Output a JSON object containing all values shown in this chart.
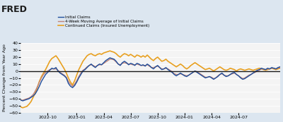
{
  "title": "",
  "ylabel": "Percent Change from Year Ago",
  "background_color": "#dce6f0",
  "plot_bg_color": "#f4f4f4",
  "ylim": [
    -60,
    40
  ],
  "yticks": [
    -60,
    -50,
    -40,
    -30,
    -20,
    -10,
    0,
    10,
    20,
    30,
    40
  ],
  "legend_entries": [
    {
      "label": "Initial Claims",
      "color": "#1f4e9c",
      "lw": 1.0
    },
    {
      "label": "4-Week Moving Average of Initial Claims",
      "color": "#c0857a",
      "lw": 1.0
    },
    {
      "label": "Continued Claims (Insured Unemployment)",
      "color": "#e8a020",
      "lw": 1.2
    }
  ],
  "fred_logo_text": "FRED",
  "series": {
    "initial_claims": {
      "x": [
        0,
        1,
        2,
        3,
        4,
        5,
        6,
        7,
        8,
        9,
        10,
        11,
        12,
        13,
        14,
        15,
        16,
        17,
        18,
        19,
        20,
        21,
        22,
        23,
        24,
        25,
        26,
        27,
        28,
        29,
        30,
        31,
        32,
        33,
        34,
        35,
        36,
        37,
        38,
        39,
        40,
        41,
        42,
        43,
        44,
        45,
        46,
        47,
        48,
        49,
        50,
        51,
        52,
        53,
        54,
        55,
        56,
        57,
        58,
        59,
        60,
        61,
        62,
        63,
        64,
        65,
        66,
        67,
        68,
        69,
        70,
        71,
        72,
        73,
        74,
        75,
        76,
        77,
        78,
        79,
        80,
        81,
        82,
        83,
        84,
        85,
        86,
        87,
        88,
        89,
        90,
        91,
        92,
        93,
        94,
        95,
        96,
        97,
        98,
        99,
        100,
        101,
        102,
        103,
        104,
        105,
        106,
        107,
        108,
        109,
        110,
        111,
        112,
        113,
        114,
        115,
        116,
        117,
        118,
        119,
        120,
        121,
        122,
        123,
        124,
        125
      ],
      "y": [
        -42,
        -43,
        -42,
        -41,
        -40,
        -38,
        -36,
        -33,
        -28,
        -22,
        -15,
        -10,
        -5,
        -2,
        1,
        4,
        3,
        5,
        0,
        -3,
        -5,
        -7,
        -10,
        -18,
        -22,
        -24,
        -21,
        -16,
        -10,
        -5,
        0,
        2,
        5,
        8,
        10,
        7,
        5,
        8,
        10,
        9,
        12,
        15,
        17,
        19,
        18,
        17,
        14,
        10,
        8,
        12,
        14,
        12,
        9,
        11,
        10,
        8,
        11,
        10,
        8,
        9,
        7,
        10,
        8,
        5,
        3,
        6,
        8,
        5,
        2,
        3,
        5,
        2,
        0,
        -2,
        -5,
        -7,
        -5,
        -3,
        -5,
        -7,
        -8,
        -6,
        -4,
        -2,
        0,
        -2,
        -4,
        -6,
        -8,
        -10,
        -9,
        -8,
        -10,
        -12,
        -10,
        -8,
        -5,
        -3,
        -6,
        -8,
        -7,
        -5,
        -3,
        -2,
        -5,
        -7,
        -10,
        -12,
        -11,
        -9,
        -7,
        -5,
        -3,
        -1,
        1,
        2,
        4,
        3,
        2,
        4,
        3,
        5,
        4,
        3,
        5,
        6
      ]
    },
    "moving_avg": {
      "x": [
        0,
        1,
        2,
        3,
        4,
        5,
        6,
        7,
        8,
        9,
        10,
        11,
        12,
        13,
        14,
        15,
        16,
        17,
        18,
        19,
        20,
        21,
        22,
        23,
        24,
        25,
        26,
        27,
        28,
        29,
        30,
        31,
        32,
        33,
        34,
        35,
        36,
        37,
        38,
        39,
        40,
        41,
        42,
        43,
        44,
        45,
        46,
        47,
        48,
        49,
        50,
        51,
        52,
        53,
        54,
        55,
        56,
        57,
        58,
        59,
        60,
        61,
        62,
        63,
        64,
        65,
        66,
        67,
        68,
        69,
        70,
        71,
        72,
        73,
        74,
        75,
        76,
        77,
        78,
        79,
        80,
        81,
        82,
        83,
        84,
        85,
        86,
        87,
        88,
        89,
        90,
        91,
        92,
        93,
        94,
        95,
        96,
        97,
        98,
        99,
        100,
        101,
        102,
        103,
        104,
        105,
        106,
        107,
        108,
        109,
        110,
        111,
        112,
        113,
        114,
        115,
        116,
        117,
        118,
        119,
        120,
        121,
        122,
        123,
        124,
        125
      ],
      "y": [
        -42,
        -42,
        -41,
        -40,
        -39,
        -37,
        -34,
        -29,
        -23,
        -16,
        -10,
        -5,
        -2,
        0,
        2,
        3,
        3,
        3,
        1,
        -2,
        -4,
        -6,
        -9,
        -15,
        -19,
        -22,
        -19,
        -14,
        -8,
        -3,
        1,
        3,
        6,
        8,
        9,
        8,
        6,
        8,
        9,
        9,
        11,
        13,
        15,
        17,
        17,
        16,
        13,
        10,
        9,
        11,
        12,
        11,
        10,
        10,
        9,
        9,
        10,
        9,
        8,
        8,
        8,
        9,
        7,
        5,
        5,
        6,
        7,
        5,
        3,
        3,
        4,
        3,
        1,
        -1,
        -4,
        -5,
        -5,
        -4,
        -5,
        -6,
        -7,
        -6,
        -4,
        -2,
        0,
        -1,
        -3,
        -5,
        -7,
        -9,
        -9,
        -8,
        -9,
        -11,
        -10,
        -7,
        -5,
        -4,
        -6,
        -7,
        -7,
        -5,
        -4,
        -3,
        -5,
        -7,
        -9,
        -11,
        -10,
        -8,
        -6,
        -5,
        -3,
        -2,
        0,
        1,
        3,
        3,
        2,
        3,
        3,
        4,
        4,
        3,
        4,
        5
      ]
    },
    "continued_claims": {
      "x": [
        0,
        1,
        2,
        3,
        4,
        5,
        6,
        7,
        8,
        9,
        10,
        11,
        12,
        13,
        14,
        15,
        16,
        17,
        18,
        19,
        20,
        21,
        22,
        23,
        24,
        25,
        26,
        27,
        28,
        29,
        30,
        31,
        32,
        33,
        34,
        35,
        36,
        37,
        38,
        39,
        40,
        41,
        42,
        43,
        44,
        45,
        46,
        47,
        48,
        49,
        50,
        51,
        52,
        53,
        54,
        55,
        56,
        57,
        58,
        59,
        60,
        61,
        62,
        63,
        64,
        65,
        66,
        67,
        68,
        69,
        70,
        71,
        72,
        73,
        74,
        75,
        76,
        77,
        78,
        79,
        80,
        81,
        82,
        83,
        84,
        85,
        86,
        87,
        88,
        89,
        90,
        91,
        92,
        93,
        94,
        95,
        96,
        97,
        98,
        99,
        100,
        101,
        102,
        103,
        104,
        105,
        106,
        107,
        108,
        109,
        110,
        111,
        112,
        113,
        114,
        115,
        116,
        117,
        118,
        119,
        120,
        121,
        122,
        123,
        124,
        125
      ],
      "y": [
        -52,
        -53,
        -52,
        -51,
        -48,
        -44,
        -38,
        -32,
        -24,
        -15,
        -8,
        -3,
        2,
        8,
        14,
        18,
        20,
        22,
        18,
        13,
        8,
        3,
        -3,
        -10,
        -16,
        -20,
        -14,
        -6,
        2,
        8,
        14,
        18,
        22,
        24,
        25,
        23,
        22,
        24,
        25,
        24,
        26,
        27,
        28,
        29,
        28,
        27,
        25,
        22,
        20,
        23,
        25,
        24,
        22,
        24,
        22,
        20,
        23,
        22,
        20,
        22,
        20,
        23,
        20,
        17,
        15,
        18,
        20,
        17,
        14,
        15,
        17,
        14,
        12,
        10,
        8,
        6,
        8,
        10,
        8,
        5,
        3,
        5,
        8,
        10,
        12,
        10,
        8,
        6,
        4,
        2,
        3,
        4,
        2,
        0,
        2,
        4,
        6,
        4,
        2,
        1,
        2,
        4,
        3,
        2,
        0,
        2,
        3,
        2,
        1,
        2,
        3,
        2,
        1,
        2,
        3,
        4,
        3,
        2,
        1,
        2,
        3,
        4,
        3,
        2,
        3,
        4
      ]
    }
  },
  "n_points": 126,
  "xtick_positions": [
    13,
    27,
    40,
    53,
    66,
    79,
    92,
    105
  ],
  "xtick_labels": [
    "2022-10",
    "2023-01",
    "2023-04",
    "2023-07",
    "2023-10",
    "2024-01",
    "2024-04",
    "2024-07"
  ]
}
